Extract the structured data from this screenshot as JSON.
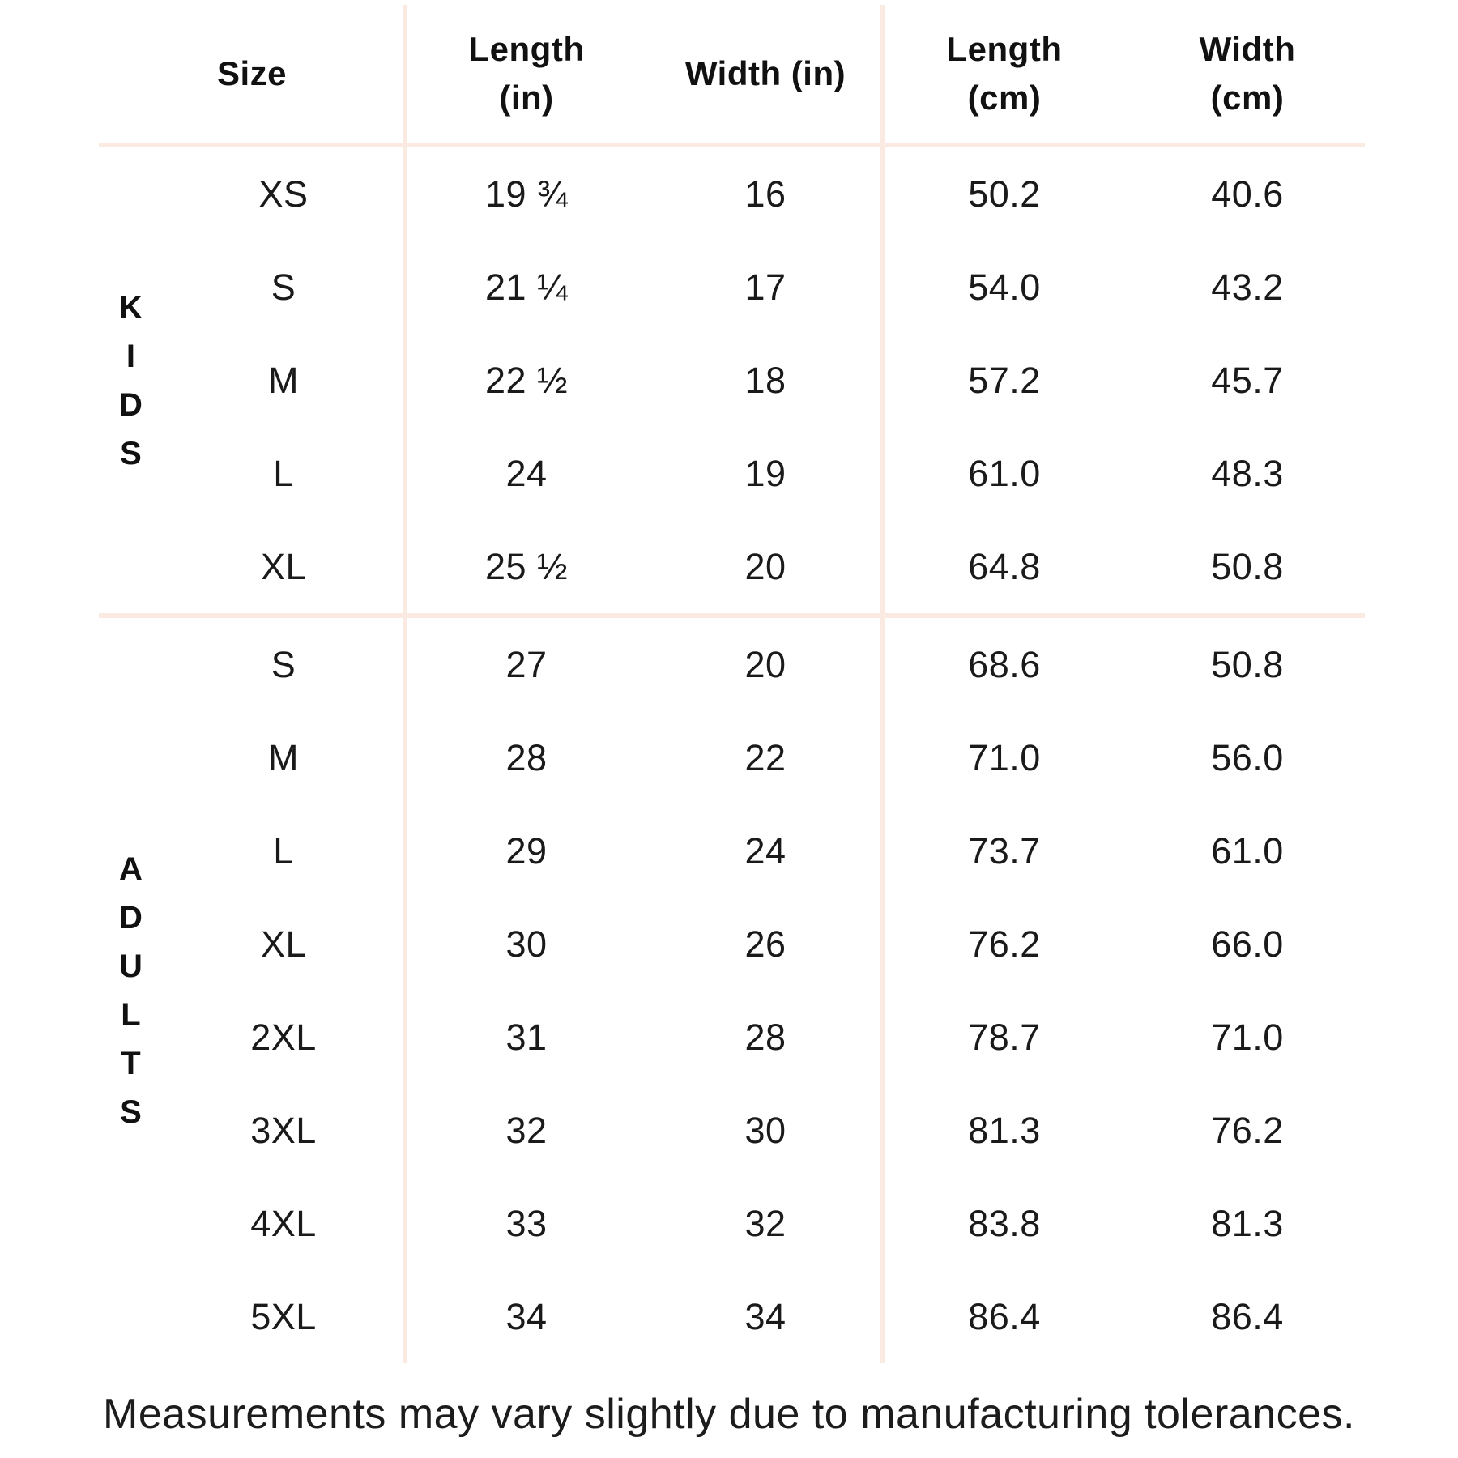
{
  "colors": {
    "line": "#fbeae1",
    "text": "#1a1a1a",
    "heading": "#111111",
    "bg": "#ffffff"
  },
  "header": {
    "size": "Size",
    "length_in_1": "Length",
    "length_in_2": "(in)",
    "width_in_1": "Width (in)",
    "length_cm_1": "Length",
    "length_cm_2": "(cm)",
    "width_cm_1": "Width",
    "width_cm_2": "(cm)"
  },
  "chart_data": {
    "type": "table",
    "columns": [
      "Size",
      "Length (in)",
      "Width (in)",
      "Length (cm)",
      "Width (cm)"
    ],
    "sections": [
      {
        "label": "KIDS",
        "rows": [
          {
            "size": "XS",
            "length_in": "19 ¾",
            "width_in": "16",
            "length_cm": "50.2",
            "width_cm": "40.6"
          },
          {
            "size": "S",
            "length_in": "21 ¼",
            "width_in": "17",
            "length_cm": "54.0",
            "width_cm": "43.2"
          },
          {
            "size": "M",
            "length_in": "22 ½",
            "width_in": "18",
            "length_cm": "57.2",
            "width_cm": "45.7"
          },
          {
            "size": "L",
            "length_in": "24",
            "width_in": "19",
            "length_cm": "61.0",
            "width_cm": "48.3"
          },
          {
            "size": "XL",
            "length_in": "25 ½",
            "width_in": "20",
            "length_cm": "64.8",
            "width_cm": "50.8"
          }
        ]
      },
      {
        "label": "ADULTS",
        "rows": [
          {
            "size": "S",
            "length_in": "27",
            "width_in": "20",
            "length_cm": "68.6",
            "width_cm": "50.8"
          },
          {
            "size": "M",
            "length_in": "28",
            "width_in": "22",
            "length_cm": "71.0",
            "width_cm": "56.0"
          },
          {
            "size": "L",
            "length_in": "29",
            "width_in": "24",
            "length_cm": "73.7",
            "width_cm": "61.0"
          },
          {
            "size": "XL",
            "length_in": "30",
            "width_in": "26",
            "length_cm": "76.2",
            "width_cm": "66.0"
          },
          {
            "size": "2XL",
            "length_in": "31",
            "width_in": "28",
            "length_cm": "78.7",
            "width_cm": "71.0"
          },
          {
            "size": "3XL",
            "length_in": "32",
            "width_in": "30",
            "length_cm": "81.3",
            "width_cm": "76.2"
          },
          {
            "size": "4XL",
            "length_in": "33",
            "width_in": "32",
            "length_cm": "83.8",
            "width_cm": "81.3"
          },
          {
            "size": "5XL",
            "length_in": "34",
            "width_in": "34",
            "length_cm": "86.4",
            "width_cm": "86.4"
          }
        ]
      }
    ],
    "footnote": "Measurements may vary slightly due to manufacturing tolerances."
  }
}
